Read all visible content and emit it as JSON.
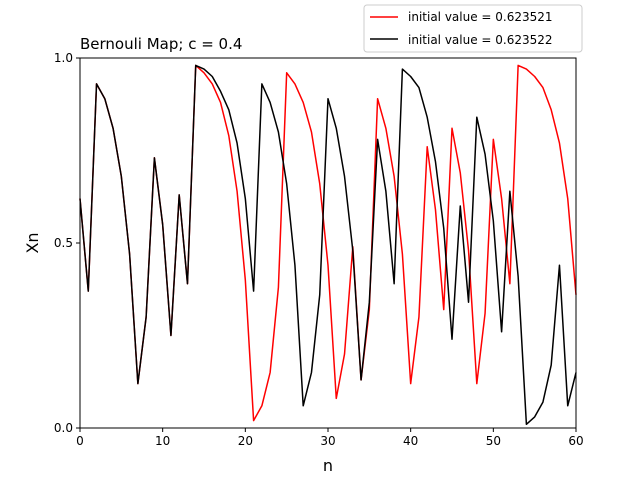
{
  "chart_data": {
    "type": "line",
    "title": "Bernouli Map; c = 0.4",
    "xlabel": "n",
    "ylabel": "Xn",
    "xlim": [
      0,
      60
    ],
    "ylim": [
      0.0,
      1.0
    ],
    "xticks": [
      0,
      10,
      20,
      30,
      40,
      50,
      60
    ],
    "xtick_labels": [
      "0",
      "10",
      "20",
      "30",
      "40",
      "50",
      "60"
    ],
    "yticks": [
      0.0,
      0.5,
      1.0
    ],
    "ytick_labels": [
      "0.0",
      "0.5",
      "1.0"
    ],
    "grid": false,
    "legend_position": "above-top-right",
    "series": [
      {
        "name": "initial value = 0.623521",
        "color": "#ff0000",
        "x": [
          0,
          1,
          2,
          3,
          4,
          5,
          6,
          7,
          8,
          9,
          10,
          11,
          12,
          13,
          14,
          15,
          16,
          17,
          18,
          19,
          20,
          21,
          22,
          23,
          24,
          25,
          26,
          27,
          28,
          29,
          30,
          31,
          32,
          33,
          34,
          35,
          36,
          37,
          38,
          39,
          40,
          41,
          42,
          43,
          44,
          45,
          46,
          47,
          48,
          49,
          50,
          51,
          52,
          53,
          54,
          55,
          56,
          57,
          58,
          59,
          60
        ],
        "values": [
          0.62,
          0.37,
          0.93,
          0.89,
          0.81,
          0.68,
          0.47,
          0.12,
          0.3,
          0.73,
          0.55,
          0.25,
          0.63,
          0.39,
          0.98,
          0.96,
          0.93,
          0.88,
          0.79,
          0.64,
          0.4,
          0.02,
          0.06,
          0.15,
          0.38,
          0.96,
          0.93,
          0.88,
          0.8,
          0.66,
          0.44,
          0.08,
          0.2,
          0.49,
          0.13,
          0.32,
          0.89,
          0.81,
          0.68,
          0.47,
          0.12,
          0.3,
          0.76,
          0.59,
          0.32,
          0.81,
          0.69,
          0.48,
          0.12,
          0.31,
          0.78,
          0.62,
          0.39,
          0.98,
          0.97,
          0.95,
          0.92,
          0.86,
          0.77,
          0.62,
          0.36
        ]
      },
      {
        "name": "initial value = 0.623522",
        "color": "#000000",
        "x": [
          0,
          1,
          2,
          3,
          4,
          5,
          6,
          7,
          8,
          9,
          10,
          11,
          12,
          13,
          14,
          15,
          16,
          17,
          18,
          19,
          20,
          21,
          22,
          23,
          24,
          25,
          26,
          27,
          28,
          29,
          30,
          31,
          32,
          33,
          34,
          35,
          36,
          37,
          38,
          39,
          40,
          41,
          42,
          43,
          44,
          45,
          46,
          47,
          48,
          49,
          50,
          51,
          52,
          53,
          54,
          55,
          56,
          57,
          58,
          59,
          60
        ],
        "values": [
          0.62,
          0.37,
          0.93,
          0.89,
          0.81,
          0.68,
          0.47,
          0.12,
          0.3,
          0.73,
          0.55,
          0.25,
          0.63,
          0.39,
          0.98,
          0.97,
          0.95,
          0.91,
          0.86,
          0.77,
          0.62,
          0.37,
          0.93,
          0.88,
          0.8,
          0.66,
          0.44,
          0.06,
          0.15,
          0.36,
          0.89,
          0.81,
          0.68,
          0.48,
          0.13,
          0.34,
          0.78,
          0.64,
          0.39,
          0.97,
          0.95,
          0.92,
          0.84,
          0.72,
          0.54,
          0.24,
          0.6,
          0.34,
          0.84,
          0.74,
          0.56,
          0.26,
          0.64,
          0.41,
          0.01,
          0.03,
          0.07,
          0.17,
          0.44,
          0.06,
          0.15
        ]
      }
    ]
  }
}
